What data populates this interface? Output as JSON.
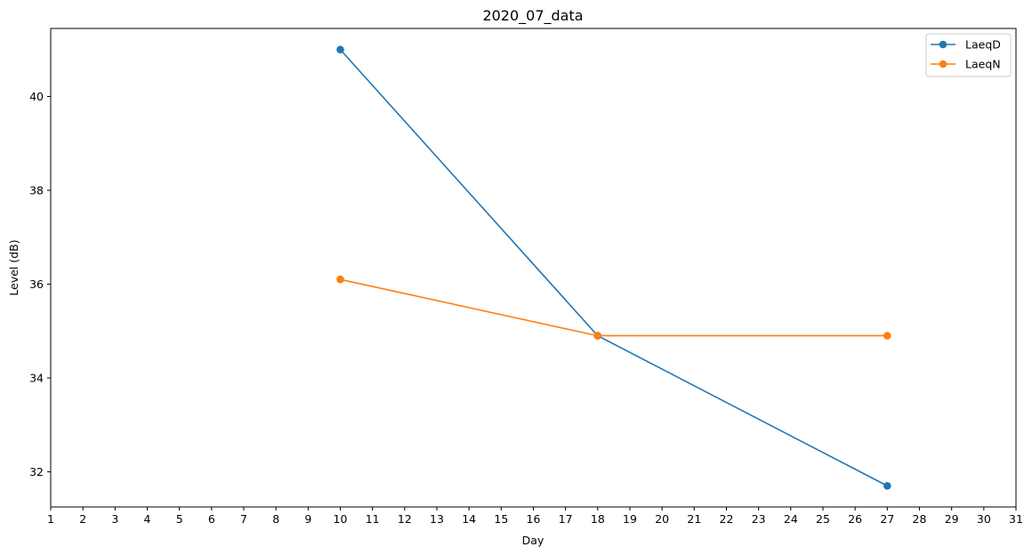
{
  "chart_data": {
    "type": "line",
    "title": "2020_07_data",
    "xlabel": "Day",
    "ylabel": "Level (dB)",
    "xlim": [
      1,
      31
    ],
    "ylim": [
      31.25,
      41.45
    ],
    "x_ticks": [
      1,
      2,
      3,
      4,
      5,
      6,
      7,
      8,
      9,
      10,
      11,
      12,
      13,
      14,
      15,
      16,
      17,
      18,
      19,
      20,
      21,
      22,
      23,
      24,
      25,
      26,
      27,
      28,
      29,
      30,
      31
    ],
    "y_ticks": [
      32,
      34,
      36,
      38,
      40
    ],
    "grid": false,
    "legend_position": "top-right",
    "series": [
      {
        "name": "LaeqD",
        "color": "#1f77b4",
        "marker": "circle",
        "points": [
          {
            "x": 10,
            "y": 41.0
          },
          {
            "x": 18,
            "y": 34.9
          },
          {
            "x": 27,
            "y": 31.7
          }
        ]
      },
      {
        "name": "LaeqN",
        "color": "#ff7f0e",
        "marker": "circle",
        "points": [
          {
            "x": 10,
            "y": 36.1
          },
          {
            "x": 18,
            "y": 34.9
          },
          {
            "x": 27,
            "y": 34.9
          }
        ]
      }
    ]
  }
}
